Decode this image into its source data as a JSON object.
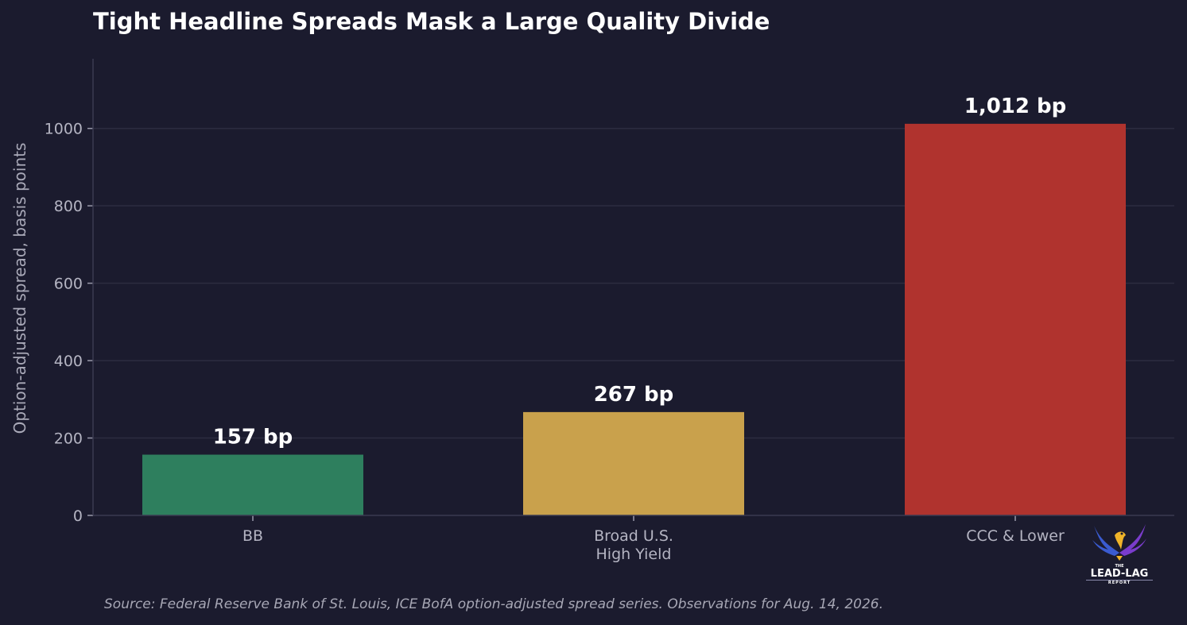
{
  "chart_data": {
    "type": "bar",
    "title": "Tight Headline Spreads Mask a Large Quality Divide",
    "xlabel": "",
    "ylabel": "Option-adjusted spread, basis points",
    "categories": [
      [
        "BB"
      ],
      [
        "Broad U.S.",
        "High Yield"
      ],
      [
        "CCC & Lower"
      ]
    ],
    "values": [
      157,
      267,
      1012
    ],
    "data_labels": [
      "157 bp",
      "267 bp",
      "1,012 bp"
    ],
    "colors": [
      "#2e7f5e",
      "#c9a14c",
      "#b0332e"
    ],
    "ylim": [
      0,
      1180
    ],
    "yticks": [
      0,
      200,
      400,
      600,
      800,
      1000
    ],
    "grid": true
  },
  "footer": {
    "source": "Source: Federal Reserve Bank of St. Louis, ICE BofA option-adjusted spread series. Observations for Aug. 14, 2026."
  },
  "logo": {
    "text": "LEAD-LAG",
    "small_top": "THE",
    "small_bottom": "REPORT",
    "icon": "eagle-icon"
  },
  "colors": {
    "background": "#1b1b2e",
    "grid": "#2c2c40",
    "axis": "#3a3a50"
  }
}
